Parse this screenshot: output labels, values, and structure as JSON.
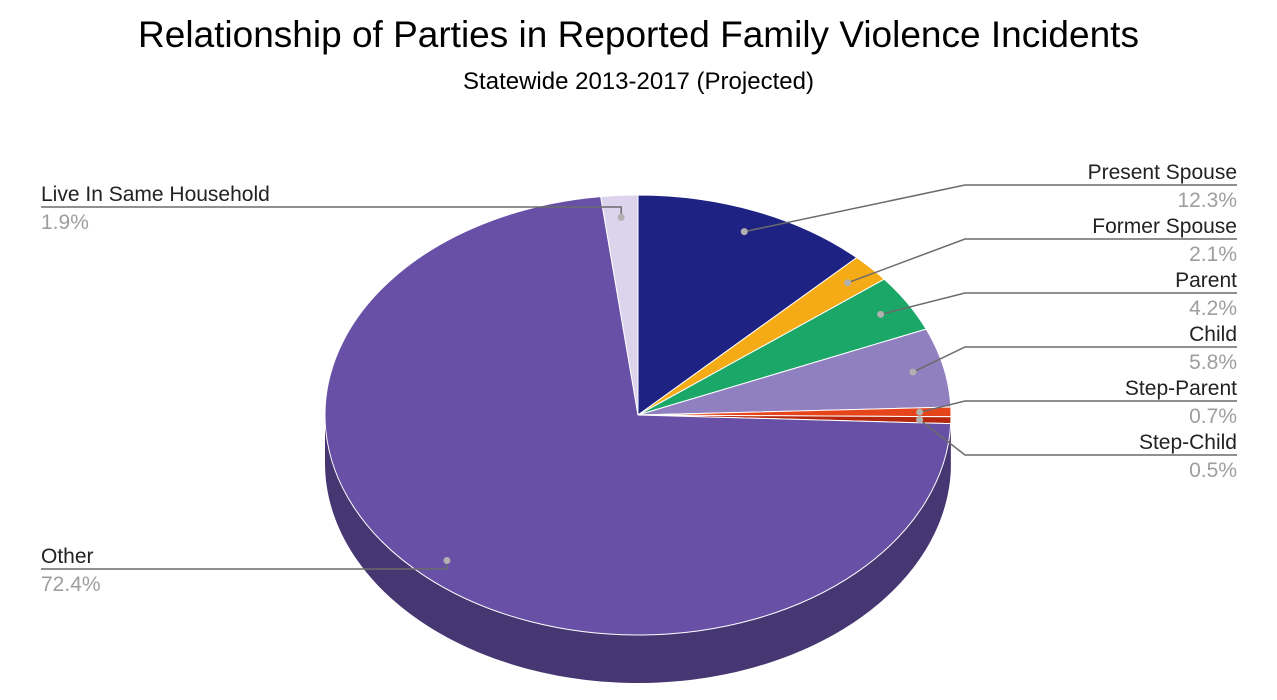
{
  "chart_data": {
    "type": "pie",
    "title": "Relationship of Parties in Reported Family Violence Incidents",
    "subtitle": "Statewide 2013-2017 (Projected)",
    "style": "3d",
    "slices": [
      {
        "name": "Present Spouse",
        "value": 12.3,
        "label": "12.3%",
        "color": "#1e2283",
        "side_color": "#141761",
        "legend": "right"
      },
      {
        "name": "Former Spouse",
        "value": 2.1,
        "label": "2.1%",
        "color": "#f4ab16",
        "side_color": "#b57e0f",
        "legend": "right"
      },
      {
        "name": "Parent",
        "value": 4.2,
        "label": "4.2%",
        "color": "#1ba768",
        "side_color": "#127a4b",
        "legend": "right"
      },
      {
        "name": "Child",
        "value": 5.8,
        "label": "5.8%",
        "color": "#9180c0",
        "side_color": "#6a5d8e",
        "legend": "right"
      },
      {
        "name": "Step-Parent",
        "value": 0.7,
        "label": "0.7%",
        "color": "#e6451c",
        "side_color": "#a83214",
        "legend": "right"
      },
      {
        "name": "Step-Child",
        "value": 0.5,
        "label": "0.5%",
        "color": "#b5280f",
        "side_color": "#861d0a",
        "legend": "right"
      },
      {
        "name": "Other",
        "value": 72.4,
        "label": "72.4%",
        "color": "#6750a6",
        "side_color": "#463773",
        "legend": "left"
      },
      {
        "name": "Live In Same Household",
        "value": 1.9,
        "label": "1.9%",
        "color": "#dcd3ec",
        "side_color": "#a8a0b8",
        "legend": "left"
      }
    ]
  }
}
